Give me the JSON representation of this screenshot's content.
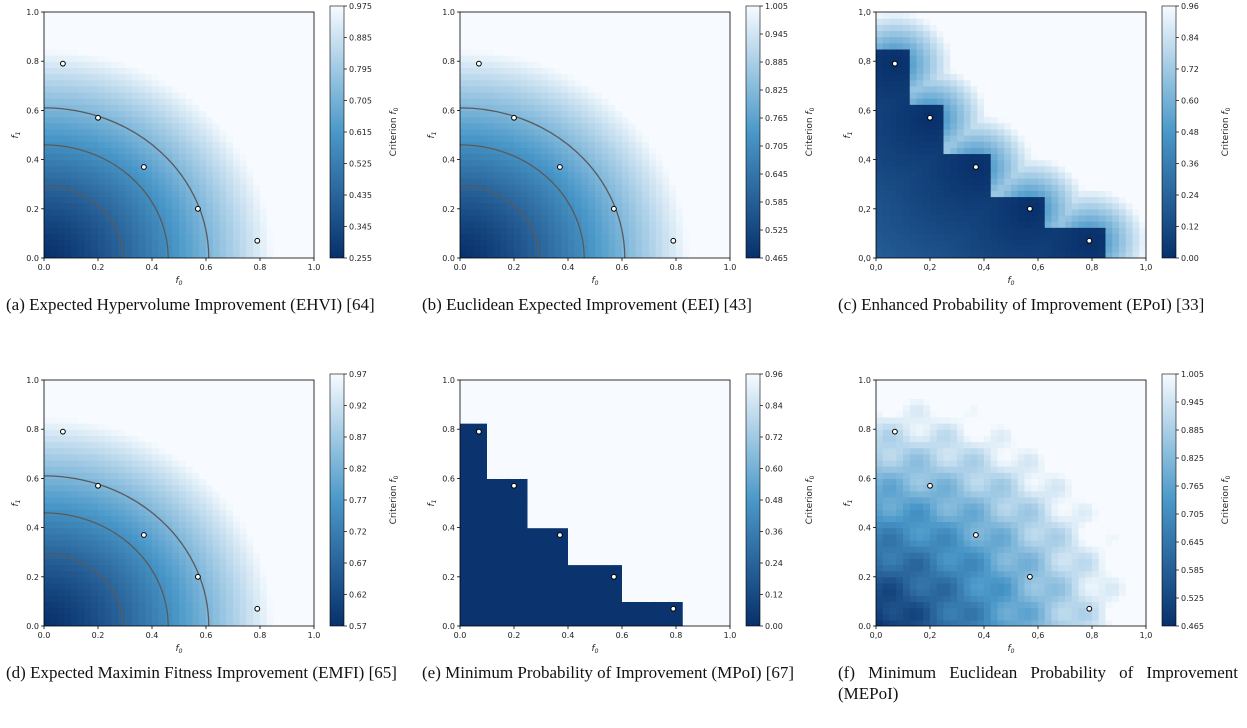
{
  "colors": {
    "dark": "#08306b",
    "mid": "#4a98c9",
    "light": "#f7fbff",
    "contour": "#5a5a5a"
  },
  "colorbar_label": "Criterion f0",
  "chart_data": [
    {
      "id": "a",
      "type": "heatmap",
      "caption": "(a) Expected Hypervolume Improvement (EHVI) [64]",
      "xlabel": "f0",
      "ylabel": "f1",
      "xlim": [
        0,
        1
      ],
      "ylim": [
        0,
        1
      ],
      "x_ticks": [
        "0.0",
        "0.2",
        "0.4",
        "0.6",
        "0.8",
        "1.0"
      ],
      "y_ticks": [
        "0.0",
        "0.2",
        "0.4",
        "0.6",
        "0.8",
        "1.0"
      ],
      "colorbar_ticks": [
        "0.975",
        "0.885",
        "0.795",
        "0.705",
        "0.615",
        "0.525",
        "0.435",
        "0.345",
        "0.255"
      ],
      "colorbar_range": [
        0.255,
        0.975
      ],
      "pattern": "smooth",
      "points": [
        [
          0.07,
          0.79
        ],
        [
          0.2,
          0.57
        ],
        [
          0.37,
          0.37
        ],
        [
          0.57,
          0.2
        ],
        [
          0.79,
          0.07
        ]
      ]
    },
    {
      "id": "b",
      "type": "heatmap",
      "caption": "(b) Euclidean Expected Improvement (EEI) [43]",
      "xlabel": "f0",
      "ylabel": "f1",
      "xlim": [
        0,
        1
      ],
      "ylim": [
        0,
        1
      ],
      "x_ticks": [
        "0.0",
        "0.2",
        "0.4",
        "0.6",
        "0.8",
        "1.0"
      ],
      "y_ticks": [
        "0.0",
        "0.2",
        "0.4",
        "0.6",
        "0.8",
        "1.0"
      ],
      "colorbar_ticks": [
        "1.005",
        "0.945",
        "0.885",
        "0.825",
        "0.765",
        "0.705",
        "0.645",
        "0.585",
        "0.525",
        "0.465"
      ],
      "colorbar_range": [
        0.465,
        1.005
      ],
      "pattern": "smooth",
      "points": [
        [
          0.07,
          0.79
        ],
        [
          0.2,
          0.57
        ],
        [
          0.37,
          0.37
        ],
        [
          0.57,
          0.2
        ],
        [
          0.79,
          0.07
        ]
      ]
    },
    {
      "id": "c",
      "type": "heatmap",
      "caption": "(c) Enhanced Probability of Improvement (EPoI) [33]",
      "xlabel": "f0",
      "ylabel": "f1",
      "xlim": [
        0,
        1
      ],
      "ylim": [
        0,
        1
      ],
      "x_ticks": [
        "0,0",
        "0,2",
        "0,4",
        "0,6",
        "0,8",
        "1,0"
      ],
      "y_ticks": [
        "0,0",
        "0,2",
        "0,4",
        "0,6",
        "0,8",
        "1,0"
      ],
      "colorbar_ticks": [
        "0.96",
        "0.84",
        "0.72",
        "0.60",
        "0.48",
        "0.36",
        "0.24",
        "0.12",
        "0.00"
      ],
      "colorbar_range": [
        0.0,
        0.96
      ],
      "pattern": "stair-smooth",
      "points": [
        [
          0.07,
          0.79
        ],
        [
          0.2,
          0.57
        ],
        [
          0.37,
          0.37
        ],
        [
          0.57,
          0.2
        ],
        [
          0.79,
          0.07
        ]
      ]
    },
    {
      "id": "d",
      "type": "heatmap",
      "caption": "(d) Expected Maximin Fitness Improvement (EMFI) [65]",
      "xlabel": "f0",
      "ylabel": "f1",
      "xlim": [
        0,
        1
      ],
      "ylim": [
        0,
        1
      ],
      "x_ticks": [
        "0.0",
        "0.2",
        "0.4",
        "0.6",
        "0.8",
        "1.0"
      ],
      "y_ticks": [
        "0.0",
        "0.2",
        "0.4",
        "0.6",
        "0.8",
        "1.0"
      ],
      "colorbar_ticks": [
        "0.97",
        "0.92",
        "0.87",
        "0.82",
        "0.77",
        "0.72",
        "0.67",
        "0.62",
        "0.57"
      ],
      "colorbar_range": [
        0.57,
        0.97
      ],
      "pattern": "smooth",
      "points": [
        [
          0.07,
          0.79
        ],
        [
          0.2,
          0.57
        ],
        [
          0.37,
          0.37
        ],
        [
          0.57,
          0.2
        ],
        [
          0.79,
          0.07
        ]
      ]
    },
    {
      "id": "e",
      "type": "heatmap",
      "caption": "(e) Minimum Probability of Improvement (MPoI) [67]",
      "xlabel": "f0",
      "ylabel": "f1",
      "xlim": [
        0,
        1
      ],
      "ylim": [
        0,
        1
      ],
      "x_ticks": [
        "0.0",
        "0.2",
        "0.4",
        "0.6",
        "0.8",
        "1.0"
      ],
      "y_ticks": [
        "0.0",
        "0.2",
        "0.4",
        "0.6",
        "0.8",
        "1.0"
      ],
      "colorbar_ticks": [
        "0.96",
        "0.84",
        "0.72",
        "0.60",
        "0.48",
        "0.36",
        "0.24",
        "0.12",
        "0.00"
      ],
      "colorbar_range": [
        0.0,
        0.96
      ],
      "pattern": "stair-sharp",
      "points": [
        [
          0.07,
          0.79
        ],
        [
          0.2,
          0.57
        ],
        [
          0.37,
          0.37
        ],
        [
          0.57,
          0.2
        ],
        [
          0.79,
          0.07
        ]
      ]
    },
    {
      "id": "f",
      "type": "heatmap",
      "caption": "(f) Minimum Euclidean Probability of Improvement (MEPoI)",
      "xlabel": "f0",
      "ylabel": "f1",
      "xlim": [
        0,
        1
      ],
      "ylim": [
        0,
        1
      ],
      "x_ticks": [
        "0,0",
        "0,2",
        "0,4",
        "0,6",
        "0,8",
        "1,0"
      ],
      "y_ticks": [
        "0.0",
        "0.2",
        "0.4",
        "0.6",
        "0.8",
        "1.0"
      ],
      "colorbar_ticks": [
        "1.005",
        "0.945",
        "0.885",
        "0.825",
        "0.765",
        "0.705",
        "0.645",
        "0.585",
        "0.525",
        "0.465"
      ],
      "colorbar_range": [
        0.465,
        1.005
      ],
      "pattern": "wavy",
      "points": [
        [
          0.07,
          0.79
        ],
        [
          0.2,
          0.57
        ],
        [
          0.37,
          0.37
        ],
        [
          0.57,
          0.2
        ],
        [
          0.79,
          0.07
        ]
      ]
    }
  ]
}
